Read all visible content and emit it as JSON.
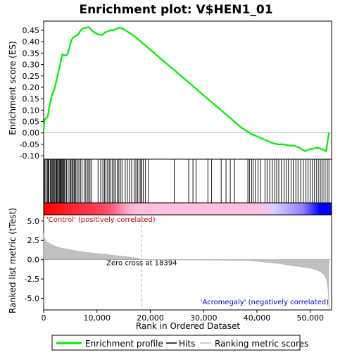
{
  "title": "Enrichment plot: V$HEN1_01",
  "colors": {
    "profile": "#00ee00",
    "hits": "#000000",
    "ranking_fill": "#c0c0c0",
    "zero_line": "#aaaaaa",
    "positive_label": "#cc0000",
    "negative_label": "#0000cc",
    "bar_high": "#ff0000",
    "bar_mid": "#ffc0e0",
    "bar_low": "#0000ff"
  },
  "legend": {
    "profile_label": "Enrichment profile",
    "hits_label": "Hits",
    "ranking_label": "Ranking metric scores"
  },
  "chart_data": [
    {
      "type": "line",
      "panel": "enrichment-profile",
      "ylabel": "Enrichment score (ES)",
      "xlim": [
        0,
        54000
      ],
      "ylim": [
        -0.115,
        0.49
      ],
      "y_ticks": [
        "0.45",
        "0.40",
        "0.35",
        "0.30",
        "0.25",
        "0.20",
        "0.15",
        "0.10",
        "0.05",
        "0.00",
        "-0.05",
        "-0.10"
      ],
      "y_tick_values": [
        0.45,
        0.4,
        0.35,
        0.3,
        0.25,
        0.2,
        0.15,
        0.1,
        0.05,
        0.0,
        -0.05,
        -0.1
      ],
      "grid": false,
      "series": [
        {
          "x": [
            0,
            200,
            500,
            800,
            1100,
            1400,
            1700,
            2000,
            2300,
            2600,
            2900,
            3200,
            3500,
            3800,
            4100,
            4500,
            5000,
            5300,
            5600,
            6000,
            6400,
            6800,
            7200,
            7600,
            8000,
            8400,
            8800,
            9200,
            9600,
            10000,
            10500,
            11000,
            11500,
            12000,
            12500,
            13000,
            13500,
            14000,
            14500,
            15000,
            16000,
            17000,
            18000,
            19000,
            20000,
            22000,
            25000,
            28000,
            31000,
            34000,
            37000,
            39000,
            40000,
            41000,
            42000,
            43000,
            44000,
            45000,
            46000,
            47000,
            48000,
            48600,
            49000,
            49500,
            50000,
            50500,
            51000,
            51500,
            52000,
            52500,
            53000,
            53300,
            53500
          ],
          "y": [
            0.01,
            0.06,
            0.065,
            0.075,
            0.12,
            0.15,
            0.175,
            0.19,
            0.22,
            0.25,
            0.28,
            0.31,
            0.345,
            0.34,
            0.34,
            0.345,
            0.39,
            0.41,
            0.42,
            0.425,
            0.43,
            0.445,
            0.455,
            0.46,
            0.46,
            0.465,
            0.455,
            0.445,
            0.44,
            0.435,
            0.43,
            0.43,
            0.44,
            0.445,
            0.45,
            0.45,
            0.455,
            0.46,
            0.46,
            0.455,
            0.44,
            0.425,
            0.405,
            0.385,
            0.365,
            0.325,
            0.265,
            0.205,
            0.145,
            0.085,
            0.025,
            -0.005,
            -0.015,
            -0.025,
            -0.035,
            -0.045,
            -0.05,
            -0.05,
            -0.055,
            -0.055,
            -0.065,
            -0.075,
            -0.08,
            -0.075,
            -0.07,
            -0.07,
            -0.065,
            -0.065,
            -0.07,
            -0.075,
            -0.08,
            -0.03,
            0.0
          ]
        }
      ]
    },
    {
      "type": "scatter",
      "panel": "hits",
      "xlim": [
        0,
        54000
      ],
      "hit_positions": [
        100,
        250,
        450,
        700,
        850,
        1000,
        1250,
        1450,
        1600,
        1750,
        1950,
        2100,
        2300,
        2450,
        2600,
        2800,
        2950,
        3100,
        3250,
        3400,
        3550,
        3700,
        3850,
        4000,
        4300,
        4600,
        4900,
        5100,
        5300,
        5500,
        5700,
        5850,
        6050,
        6300,
        6600,
        6900,
        7200,
        7600,
        7900,
        8200,
        8450,
        8700,
        9000,
        10200,
        10700,
        11100,
        11400,
        11700,
        12000,
        12300,
        12600,
        12900,
        13200,
        13500,
        13800,
        14100,
        14400,
        14700,
        15300,
        15700,
        16100,
        16500,
        17000,
        17300,
        17600,
        17900,
        18200,
        18400,
        18700,
        19100,
        19600,
        24500,
        27200,
        28000,
        28600,
        30800,
        31500,
        33300,
        34200,
        35000,
        35800,
        38300,
        38600,
        39000,
        39300,
        39700,
        40200,
        40700,
        41500,
        41900,
        42400,
        42900,
        43300,
        43700,
        44100,
        44600,
        45100,
        45500,
        45900,
        46400,
        46800,
        47300,
        47700,
        48200,
        48700,
        49200,
        49600,
        50000,
        50400,
        50800,
        51200,
        51600,
        52000,
        52400,
        52800,
        53200,
        53500
      ]
    },
    {
      "type": "area",
      "panel": "ranking-metric",
      "xlabel": "Rank in Ordered Dataset",
      "ylabel": "Ranked list metric (tTest)",
      "xlim": [
        0,
        54000
      ],
      "ylim": [
        -6.5,
        5.8
      ],
      "x_ticks": [
        "0",
        "10,000",
        "20,000",
        "30,000",
        "40,000",
        "50,000"
      ],
      "x_tick_values": [
        0,
        10000,
        20000,
        30000,
        40000,
        50000
      ],
      "y_ticks": [
        "5.0",
        "2.5",
        "0.0",
        "-2.5",
        "-5.0"
      ],
      "y_tick_values": [
        5.0,
        2.5,
        0.0,
        -2.5,
        -5.0
      ],
      "series": [
        {
          "x": [
            0,
            100,
            300,
            700,
            1200,
            2000,
            3000,
            4500,
            6000,
            8000,
            10000,
            12000,
            14000,
            16000,
            17500,
            18394,
            20000,
            25000,
            30000,
            35000,
            38000,
            40000,
            42000,
            44000,
            46000,
            48000,
            50000,
            51000,
            52000,
            52800,
            53200,
            53400,
            53500
          ],
          "y": [
            3.4,
            2.9,
            2.6,
            2.3,
            2.05,
            1.8,
            1.55,
            1.35,
            1.15,
            0.95,
            0.8,
            0.65,
            0.5,
            0.35,
            0.18,
            0.0,
            -0.02,
            -0.04,
            -0.06,
            -0.08,
            -0.1,
            -0.2,
            -0.35,
            -0.5,
            -0.7,
            -0.9,
            -1.1,
            -1.3,
            -1.6,
            -2.1,
            -3.0,
            -4.5,
            -6.3
          ]
        }
      ],
      "zero_cross_label": "Zero cross at 18394",
      "zero_cross": 18394,
      "positive_label": "'Control' (positively correlated)",
      "negative_label": "'Acromegaly' (negatively correlated)"
    }
  ]
}
